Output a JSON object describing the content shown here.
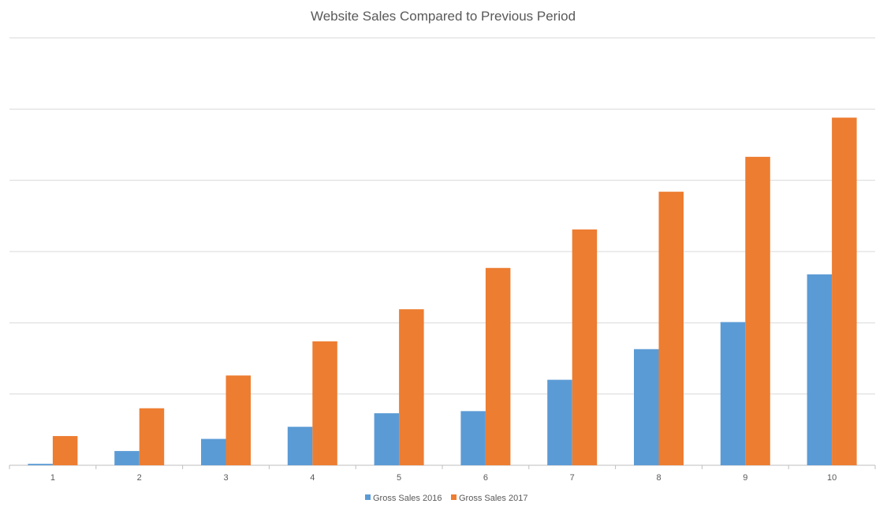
{
  "chart_data": {
    "type": "bar",
    "title": "Website Sales Compared to Previous Period",
    "xlabel": "",
    "ylabel": "",
    "categories": [
      "1",
      "2",
      "3",
      "4",
      "5",
      "6",
      "7",
      "8",
      "9",
      "10"
    ],
    "series": [
      {
        "name": "Gross Sales 2016",
        "color": "#5B9BD5",
        "values": [
          0.02,
          0.2,
          0.37,
          0.54,
          0.73,
          0.76,
          1.2,
          1.63,
          2.01,
          2.68
        ]
      },
      {
        "name": "Gross Sales 2017",
        "color": "#ED7D31",
        "values": [
          0.41,
          0.8,
          1.26,
          1.74,
          2.19,
          2.77,
          3.31,
          3.84,
          4.33,
          4.88
        ]
      }
    ],
    "ylim": [
      0,
      6
    ],
    "y_tick_labels_shown": false,
    "grid": true,
    "legend_position": "bottom"
  }
}
